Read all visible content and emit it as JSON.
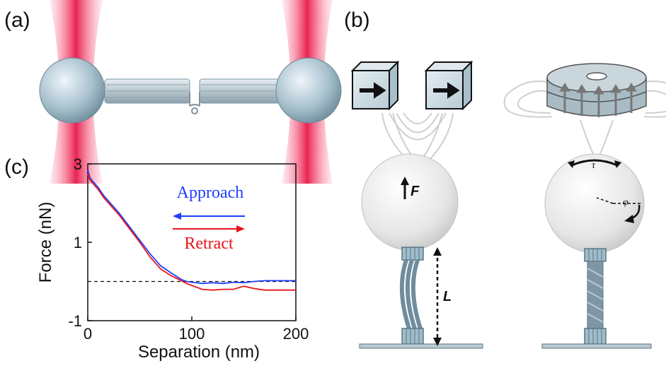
{
  "panels": {
    "a_label": "(a)",
    "b_label": "(b)",
    "c_label": "(c)"
  },
  "diagram_b": {
    "force_symbol": "F",
    "length_symbol": "L",
    "torque_symbol": "τ",
    "angle_symbol": "φ"
  },
  "chart_data": {
    "type": "line",
    "xlabel": "Separation (nm)",
    "ylabel": "Force (nN)",
    "xlim": [
      0,
      200
    ],
    "ylim": [
      -1,
      3
    ],
    "xticks": [
      0,
      100,
      200
    ],
    "yticks": [
      3,
      1,
      -1
    ],
    "reference_line": {
      "y": 0,
      "style": "dashed"
    },
    "legend_placement": "center-right",
    "series": [
      {
        "name": "Approach",
        "color": "#1f3fff",
        "arrow": "left",
        "x": [
          0,
          2,
          5,
          10,
          15,
          20,
          30,
          40,
          50,
          60,
          70,
          80,
          90,
          95,
          100,
          110,
          120,
          130,
          140,
          150,
          160,
          170,
          180,
          190,
          200
        ],
        "y": [
          2.85,
          2.65,
          2.55,
          2.4,
          2.2,
          2.05,
          1.75,
          1.4,
          1.05,
          0.7,
          0.4,
          0.22,
          0.05,
          0.0,
          -0.02,
          -0.05,
          -0.03,
          -0.05,
          -0.02,
          -0.03,
          0.0,
          0.02,
          0.02,
          0.02,
          0.02
        ]
      },
      {
        "name": "Retract",
        "color": "#e8141b",
        "arrow": "right",
        "x": [
          0,
          2,
          5,
          10,
          15,
          20,
          30,
          40,
          50,
          60,
          70,
          80,
          90,
          95,
          100,
          110,
          120,
          130,
          140,
          150,
          160,
          170,
          180,
          190,
          200
        ],
        "y": [
          2.75,
          2.6,
          2.5,
          2.35,
          2.15,
          2.0,
          1.7,
          1.35,
          1.0,
          0.62,
          0.32,
          0.15,
          0.02,
          -0.05,
          -0.1,
          -0.2,
          -0.22,
          -0.2,
          -0.2,
          -0.12,
          -0.18,
          -0.22,
          -0.22,
          -0.22,
          -0.22
        ]
      }
    ]
  }
}
